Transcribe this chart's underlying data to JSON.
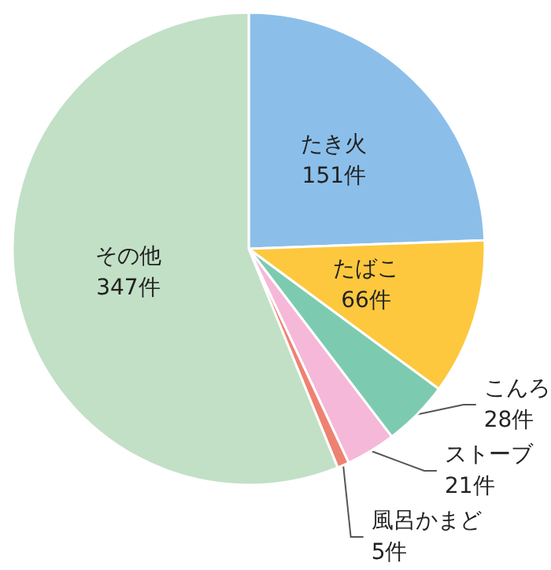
{
  "chart_data": {
    "type": "pie",
    "categories": [
      "たき火",
      "たばこ",
      "こんろ",
      "ストーブ",
      "風呂かまど",
      "その他"
    ],
    "values": [
      151,
      66,
      28,
      21,
      5,
      347
    ],
    "value_labels": [
      "151件",
      "66件",
      "28件",
      "21件",
      "5件",
      "347件"
    ],
    "colors": [
      "#8bbfea",
      "#fdc83e",
      "#7ccbb0",
      "#f5b8d8",
      "#ee8272",
      "#c2e0c6"
    ],
    "legend": false
  }
}
